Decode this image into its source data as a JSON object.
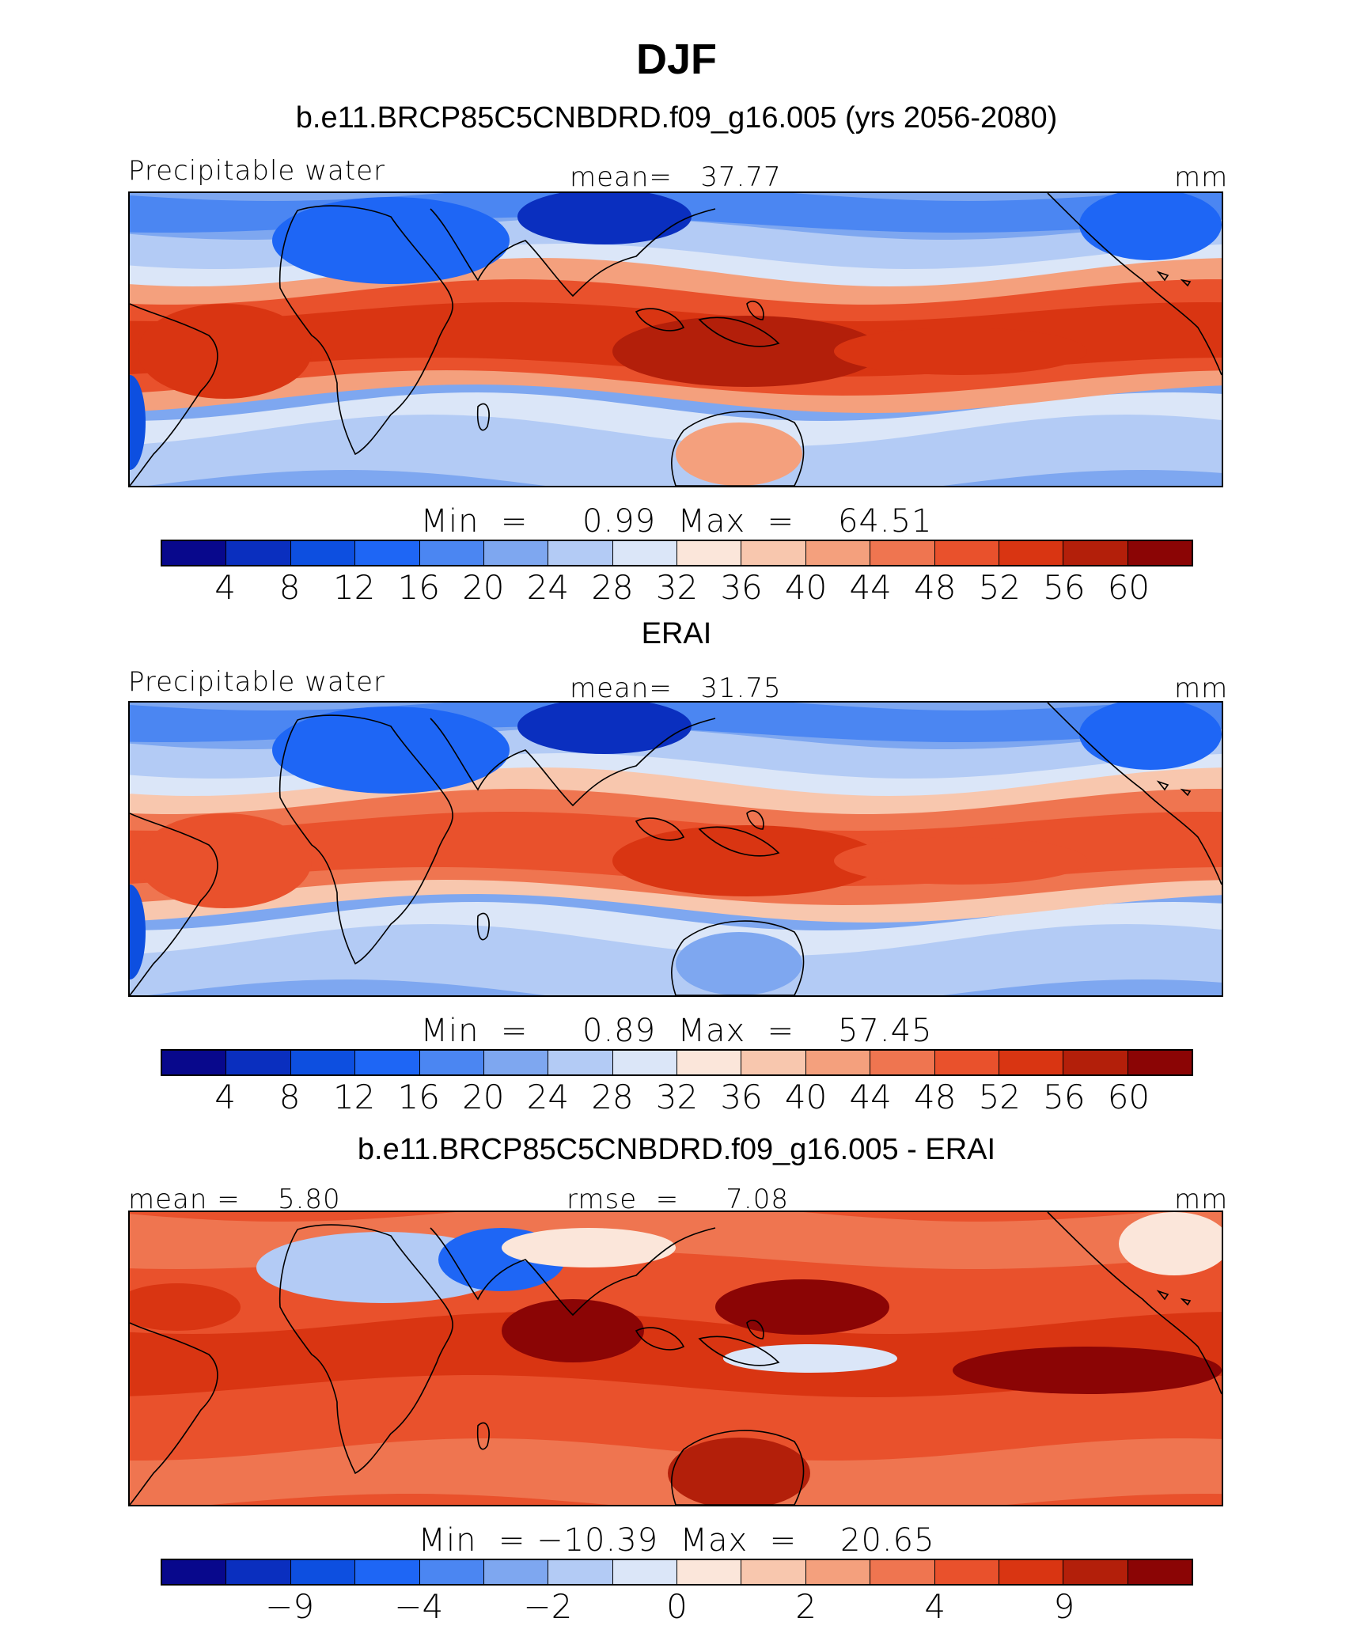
{
  "title": "DJF",
  "panels": [
    {
      "title": "b.e11.BRCP85C5CNBDRD.f09_g16.005 (yrs 2056-2080)",
      "left_label": "Precipitable water",
      "center_label": "mean=   37.77",
      "units": "mm",
      "minmax_text": "Min  =     0.99  Max  =    64.51",
      "colorbar_ticks": [
        "4",
        "8",
        "12",
        "16",
        "20",
        "24",
        "28",
        "32",
        "36",
        "40",
        "44",
        "48",
        "52",
        "56",
        "60"
      ]
    },
    {
      "title": "ERAI",
      "left_label": "Precipitable water",
      "center_label": "mean=   31.75",
      "units": "mm",
      "minmax_text": "Min  =     0.89  Max  =    57.45",
      "colorbar_ticks": [
        "4",
        "8",
        "12",
        "16",
        "20",
        "24",
        "28",
        "32",
        "36",
        "40",
        "44",
        "48",
        "52",
        "56",
        "60"
      ]
    },
    {
      "title": "b.e11.BRCP85C5CNBDRD.f09_g16.005 - ERAI",
      "left_label": "mean =    5.80",
      "center_label": "rmse  =     7.08",
      "units": "mm",
      "minmax_text": "Min  = −10.39  Max  =    20.65",
      "colorbar_ticks": [
        "−9",
        "−4",
        "−2",
        "0",
        "2",
        "4",
        "9"
      ]
    }
  ],
  "colors": {
    "palette": [
      "#08088c",
      "#0a2fbf",
      "#0d4fe0",
      "#1e66f5",
      "#4b86f2",
      "#7ea7f0",
      "#b3cbf5",
      "#dbe6f8",
      "#fbe6da",
      "#f8c7ae",
      "#f4a07d",
      "#ef7550",
      "#e9512c",
      "#d93512",
      "#b31f0a",
      "#8b0505"
    ],
    "land_outline": "#000000"
  },
  "chart_data": [
    {
      "type": "heatmap",
      "title": "b.e11.BRCP85C5CNBDRD.f09_g16.005 (yrs 2056-2080)",
      "variable": "Precipitable water",
      "units": "mm",
      "mean": 37.77,
      "min": 0.99,
      "max": 64.51,
      "contour_levels": [
        4,
        8,
        12,
        16,
        20,
        24,
        28,
        32,
        36,
        40,
        44,
        48,
        52,
        56,
        60
      ]
    },
    {
      "type": "heatmap",
      "title": "ERAI",
      "variable": "Precipitable water",
      "units": "mm",
      "mean": 31.75,
      "min": 0.89,
      "max": 57.45,
      "contour_levels": [
        4,
        8,
        12,
        16,
        20,
        24,
        28,
        32,
        36,
        40,
        44,
        48,
        52,
        56,
        60
      ]
    },
    {
      "type": "heatmap",
      "title": "b.e11.BRCP85C5CNBDRD.f09_g16.005 - ERAI",
      "units": "mm",
      "mean": 5.8,
      "rmse": 7.08,
      "min": -10.39,
      "max": 20.65,
      "colorbar_labels": [
        -9,
        -4,
        -2,
        0,
        2,
        4,
        9
      ]
    }
  ]
}
